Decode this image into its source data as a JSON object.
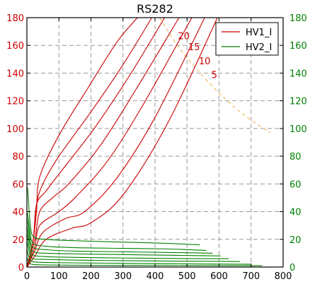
{
  "chart_data": {
    "type": "line",
    "title": "RS282",
    "xlim": [
      0,
      800
    ],
    "ylim_left": [
      0,
      180
    ],
    "ylim_right": [
      0,
      180
    ],
    "xticks": [
      0,
      100,
      200,
      300,
      400,
      500,
      600,
      700,
      800
    ],
    "yticks_left": [
      0,
      20,
      40,
      60,
      80,
      100,
      120,
      140,
      160,
      180
    ],
    "yticks_right": [
      0,
      20,
      40,
      60,
      80,
      100,
      120,
      140,
      160,
      180
    ],
    "grid": true,
    "legend_position": "top-right",
    "colors": {
      "hv1": "#cc0000",
      "hv2": "#008000",
      "power_limit": "#f0b860",
      "left_axis": "#cc0000",
      "right_axis": "#008000"
    },
    "legend": [
      {
        "name": "HV1_I",
        "color": "#cc0000"
      },
      {
        "name": "HV2_I",
        "color": "#008000"
      }
    ],
    "series": [
      {
        "name": "HV1_I",
        "axis": "left",
        "curves": [
          {
            "x": [
              0,
              20,
              30,
              40,
              100,
              190,
              280,
              345
            ],
            "y": [
              0,
              20,
              40,
              65,
              95,
              129,
              162,
              180
            ]
          },
          {
            "x": [
              0,
              20,
              30,
              50,
              100,
              200,
              300,
              390
            ],
            "y": [
              0,
              20,
              45,
              60,
              80,
              112,
              146,
              180
            ]
          },
          {
            "x": [
              0,
              20,
              30,
              60,
              110,
              210,
              320,
              430
            ],
            "y": [
              0,
              20,
              45,
              55,
              70,
              100,
              138,
              180
            ]
          },
          {
            "x": [
              0,
              25,
              40,
              80,
              130,
              230,
              340,
              475
            ],
            "y": [
              0,
              20,
              40,
              50,
              60,
              88,
              128,
              180
            ]
          },
          {
            "x": [
              0,
              25,
              40,
              100,
              150,
              250,
              360,
              515
            ],
            "y": [
              0,
              15,
              30,
              40,
              50,
              76,
              116,
              180
            ]
          },
          {
            "x": [
              0,
              25,
              50,
              120,
              180,
              280,
              400,
              555
            ],
            "y": [
              0,
              12,
              25,
              35,
              40,
              64,
              108,
              180
            ]
          },
          {
            "x": [
              0,
              25,
              60,
              140,
              200,
              300,
              440,
              595
            ],
            "y": [
              0,
              8,
              20,
              28,
              32,
              52,
              104,
              180
            ]
          }
        ]
      },
      {
        "name": "HV2_I",
        "axis": "right",
        "curves": [
          {
            "x": [
              0,
              3,
              6,
              10,
              20,
              60,
              150,
              300,
              450,
              540
            ],
            "y": [
              58,
              55,
              44,
              32,
              22,
              20,
              19,
              18,
              17,
              16
            ]
          },
          {
            "x": [
              0,
              5,
              10,
              20,
              60,
              150,
              300,
              450,
              560
            ],
            "y": [
              40,
              34,
              25,
              17,
              15,
              14,
              13.5,
              13,
              12
            ]
          },
          {
            "x": [
              0,
              5,
              10,
              20,
              60,
              150,
              300,
              450,
              580
            ],
            "y": [
              35,
              29,
              20,
              14,
              12.5,
              11.5,
              11,
              10.5,
              10
            ]
          },
          {
            "x": [
              0,
              5,
              10,
              20,
              60,
              150,
              300,
              450,
              605
            ],
            "y": [
              30,
              23,
              16,
              11,
              10,
              9.5,
              9,
              8.5,
              8
            ]
          },
          {
            "x": [
              0,
              5,
              10,
              20,
              60,
              150,
              300,
              450,
              630
            ],
            "y": [
              25,
              18,
              12,
              8.5,
              7.5,
              7,
              6.5,
              6.2,
              6
            ]
          },
          {
            "x": [
              0,
              5,
              10,
              20,
              60,
              150,
              300,
              450,
              665
            ],
            "y": [
              19,
              13,
              9,
              6,
              5.5,
              5,
              4.6,
              4.3,
              4
            ]
          },
          {
            "x": [
              0,
              5,
              10,
              20,
              60,
              150,
              300,
              450,
              700
            ],
            "y": [
              13,
              8,
              5.5,
              3.8,
              3.3,
              3,
              2.7,
              2.4,
              2
            ]
          },
          {
            "x": [
              0,
              5,
              10,
              20,
              60,
              150,
              300,
              450,
              735
            ],
            "y": [
              7,
              4,
              2.5,
              1.8,
              1.5,
              1.3,
              1.2,
              1.1,
              1
            ]
          }
        ]
      }
    ],
    "power_limit_curve": {
      "x": [
        415,
        470,
        530,
        590,
        650,
        700,
        760
      ],
      "y": [
        180,
        160,
        143,
        128,
        115,
        106,
        97
      ]
    },
    "contour_labels": [
      {
        "text": "20",
        "x": 490,
        "y": 167
      },
      {
        "text": "15",
        "x": 522,
        "y": 159
      },
      {
        "text": "10",
        "x": 555,
        "y": 149
      },
      {
        "text": "5",
        "x": 585,
        "y": 139
      }
    ]
  }
}
